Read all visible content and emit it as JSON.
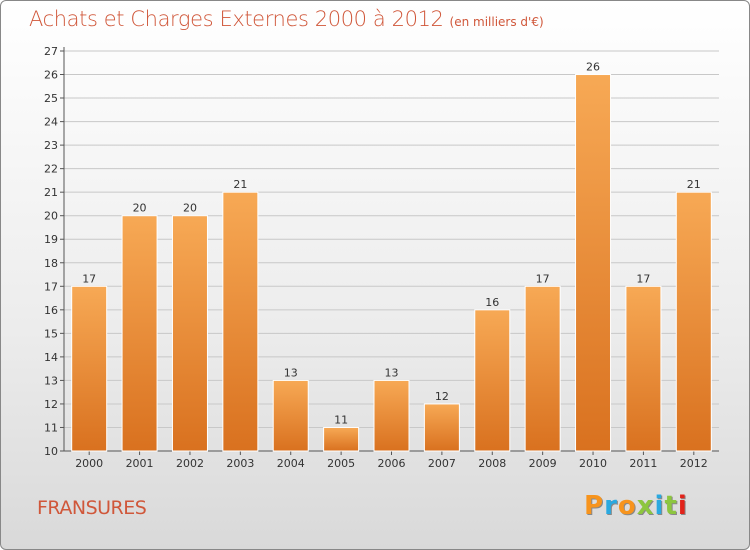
{
  "title": "Achats et Charges Externes 2000 à 2012",
  "unit": "(en milliers d'€)",
  "commune": "FRANSURES",
  "logo": {
    "text": "Proxiti",
    "colors": [
      "#f7941d",
      "#2aa9e0",
      "#f7941d",
      "#8dc63f",
      "#2aa9e0",
      "#8dc63f",
      "#e2231a"
    ]
  },
  "colors": {
    "bar_top": "#f7a955",
    "bar_bottom": "#d9711f",
    "title": "#d0573a",
    "grid": "#c8c8c8"
  },
  "chart_data": {
    "type": "bar",
    "categories": [
      "2000",
      "2001",
      "2002",
      "2003",
      "2004",
      "2005",
      "2006",
      "2007",
      "2008",
      "2009",
      "2010",
      "2011",
      "2012"
    ],
    "values": [
      17,
      20,
      20,
      21,
      13,
      11,
      13,
      12,
      16,
      17,
      26,
      17,
      21
    ],
    "value_labels": [
      "17",
      "20",
      "20",
      "21",
      "13",
      "11",
      "13",
      "12",
      "16",
      "17",
      "26",
      "17",
      "21"
    ],
    "y_ticks": [
      "10",
      "11",
      "12",
      "13",
      "14",
      "15",
      "16",
      "17",
      "18",
      "19",
      "20",
      "21",
      "22",
      "23",
      "24",
      "25",
      "26",
      "27"
    ],
    "ylim": [
      10,
      27
    ],
    "grid": true,
    "title": "Achats et Charges Externes 2000 à 2012",
    "xlabel": "",
    "ylabel": ""
  }
}
